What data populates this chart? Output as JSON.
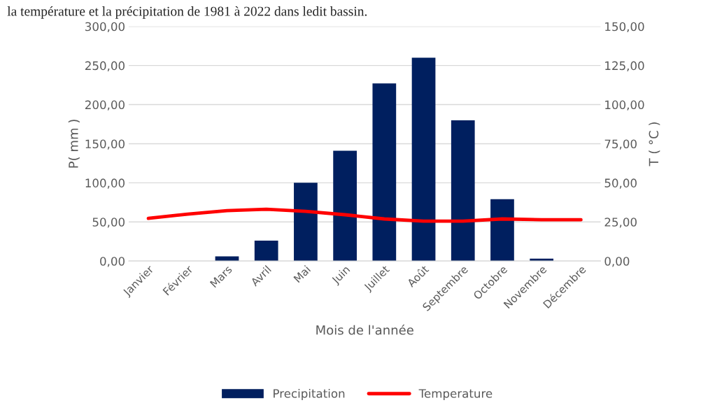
{
  "chart_data": {
    "type": "bar",
    "annotations": [
      "la température et la précipitation de 1981 à 2022 dans ledit bassin."
    ],
    "xlabel": "Mois de l'année",
    "ylabel": "P( mm )",
    "y2label": "T ( °C )",
    "categories": [
      "Janvier",
      "Février",
      "Mars",
      "Avril",
      "Mai",
      "Juin",
      "Juillet",
      "Août",
      "Septembre",
      "Octobre",
      "Novembre",
      "Décembre"
    ],
    "series": [
      {
        "name": "Precipitation",
        "color": "#001f5f",
        "values": [
          0,
          0,
          6,
          26,
          100,
          141,
          227,
          260,
          180,
          79,
          3,
          0
        ]
      },
      {
        "name": "Temperature",
        "type": "line",
        "axis": "y2",
        "color": "#ff0000",
        "values": [
          27.3,
          30.0,
          32.2,
          33.1,
          31.8,
          29.6,
          26.9,
          25.5,
          25.5,
          26.9,
          26.4,
          26.4
        ]
      }
    ],
    "ylim": [
      0,
      300
    ],
    "yticks": [
      {
        "value": 0,
        "label": "0,00"
      },
      {
        "value": 50,
        "label": "50,00"
      },
      {
        "value": 100,
        "label": "100,00"
      },
      {
        "value": 150,
        "label": "150,00"
      },
      {
        "value": 200,
        "label": "200,00"
      },
      {
        "value": 250,
        "label": "250,00"
      },
      {
        "value": 300,
        "label": "300,00"
      }
    ],
    "y2lim": [
      0,
      150
    ],
    "y2ticks": [
      {
        "value": 0,
        "label": "0,00"
      },
      {
        "value": 25,
        "label": "25,00"
      },
      {
        "value": 50,
        "label": "50,00"
      },
      {
        "value": 75,
        "label": "75,00"
      },
      {
        "value": 100,
        "label": "100,00"
      },
      {
        "value": 125,
        "label": "125,00"
      },
      {
        "value": 150,
        "label": "150,00"
      }
    ],
    "grid": "y",
    "legend": "bottom"
  }
}
